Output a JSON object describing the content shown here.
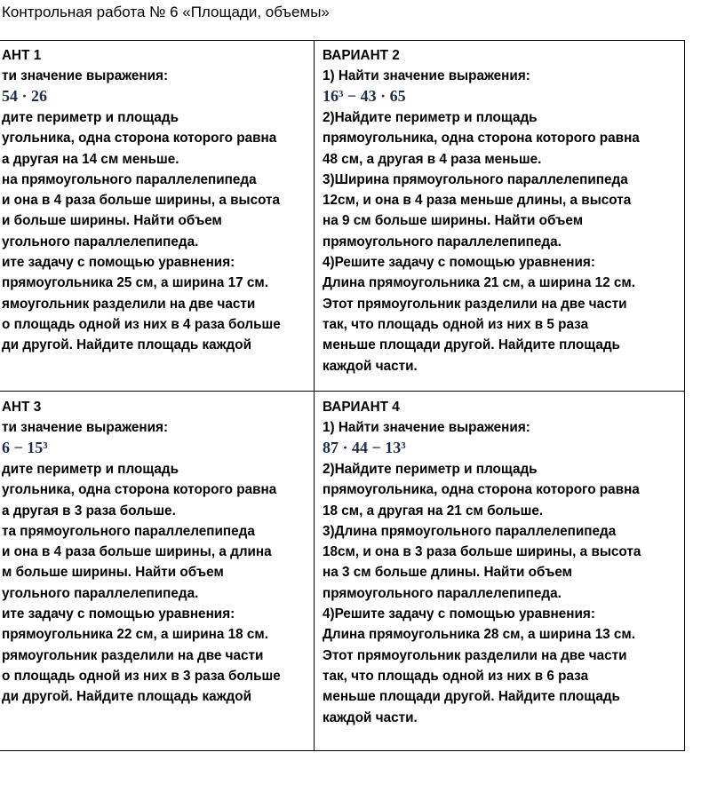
{
  "title": "Контрольная работа № 6 «Площади, объемы»",
  "cells": [
    {
      "heading": "АНТ 1",
      "lines_before": [
        "ти значение выражения:"
      ],
      "formula": "54 · 26",
      "lines_after": [
        "дите периметр и площадь",
        "угольника, одна сторона которого равна",
        "а другая на 14 см меньше.",
        "на прямоугольного параллелепипеда",
        "и она в 4 раза больше ширины, а высота",
        "и больше ширины. Найти объем",
        "угольного параллелепипеда.",
        "ите задачу с помощью уравнения:",
        "прямоугольника 25 см, а ширина 17 см.",
        "ямоугольник разделили на две части",
        "о площадь одной из них в 4 раза больше",
        "ди другой. Найдите площадь каждой"
      ]
    },
    {
      "heading": "ВАРИАНТ 2",
      "lines_before": [
        "1) Найти значение выражения:"
      ],
      "formula": "16³ − 43 · 65",
      "lines_after": [
        "2)Найдите периметр и площадь",
        "прямоугольника, одна сторона которого равна",
        "48 см, а другая в 4 раза меньше.",
        "3)Ширина прямоугольного параллелепипеда",
        "12см, и она в 4 раза меньше  длины, а высота",
        "на 9 см больше ширины. Найти объем",
        "прямоугольного параллелепипеда.",
        "4)Решите задачу с помощью уравнения:",
        "Длина прямоугольника 21 см, а ширина 12 см.",
        "Этот прямоугольник разделили на две части",
        "так, что площадь одной из них в 5 раза",
        "меньше площади другой. Найдите площадь",
        "каждой части."
      ]
    },
    {
      "heading": "АНТ 3",
      "lines_before": [
        "ти значение выражения:"
      ],
      "formula": "6 − 15³",
      "lines_after": [
        "дите периметр и площадь",
        "угольника, одна сторона которого равна",
        "а другая в 3 раза больше.",
        "та прямоугольного параллелепипеда",
        "и она в 4 раза больше ширины, а длина",
        "м больше ширины. Найти объем",
        "угольного параллелепипеда.",
        "ите задачу с помощью уравнения:",
        "прямоугольника 22 см, а ширина 18 см.",
        "рямоугольник разделили на две части",
        "о площадь одной из них в 3 раза больше",
        "ди другой. Найдите площадь каждой"
      ]
    },
    {
      "heading": "ВАРИАНТ 4",
      "lines_before": [
        "1) Найти значение выражения:"
      ],
      "formula": "87 · 44 − 13³",
      "lines_after": [
        "2)Найдите периметр и площадь",
        "прямоугольника, одна сторона которого равна",
        "18 см, а другая на 21 см больше.",
        "3)Длина прямоугольного параллелепипеда",
        "18см, и она в 3 раза больше ширины, а высота",
        "на 3 см больше длины. Найти объем",
        "прямоугольного параллелепипеда.",
        "4)Решите задачу с помощью уравнения:",
        "Длина прямоугольника 28 см, а ширина 13 см.",
        "Этот прямоугольник разделили на две части",
        "так, что площадь одной из них в 6 раза",
        "меньше площади другой. Найдите площадь",
        "каждой части."
      ]
    }
  ]
}
